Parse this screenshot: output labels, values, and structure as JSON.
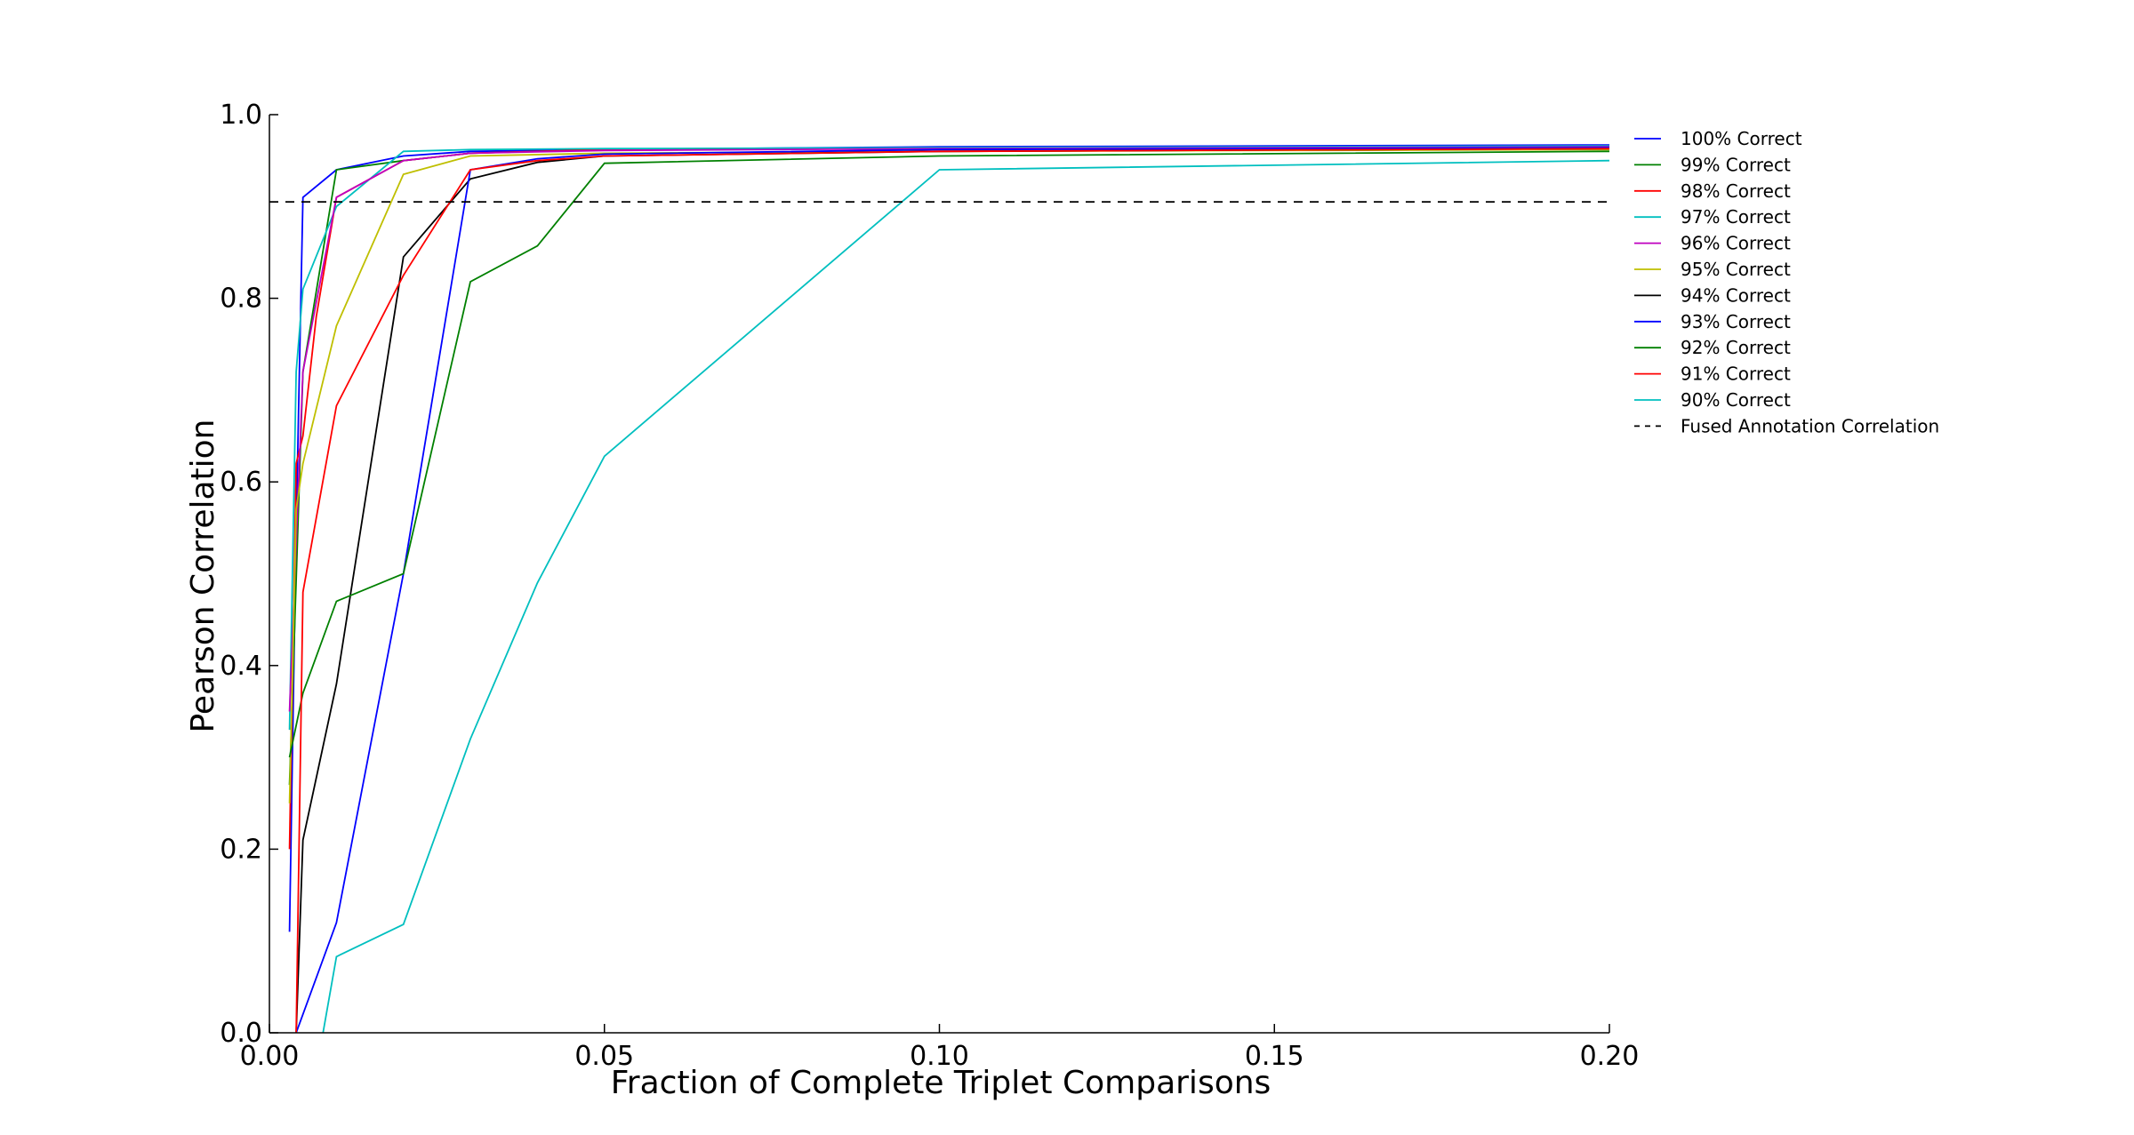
{
  "chart_data": {
    "type": "line",
    "title": "",
    "xlabel": "Fraction of Complete Triplet Comparisons",
    "ylabel": "Pearson Correlation",
    "xlim": [
      0.0,
      0.2
    ],
    "ylim": [
      0.0,
      1.0
    ],
    "x_ticks": [
      "0.00",
      "0.05",
      "0.10",
      "0.15",
      "0.20"
    ],
    "y_ticks": [
      "0.0",
      "0.2",
      "0.4",
      "0.6",
      "0.8",
      "1.0"
    ],
    "grid": false,
    "legend": "right, outside plot area",
    "series": [
      {
        "name": "100% Correct",
        "color": "#0000ff",
        "points": [
          [
            0.003,
            0.11
          ],
          [
            0.004,
            0.55
          ],
          [
            0.005,
            0.91
          ],
          [
            0.01,
            0.94
          ],
          [
            0.02,
            0.955
          ],
          [
            0.03,
            0.96
          ],
          [
            0.05,
            0.962
          ],
          [
            0.1,
            0.965
          ],
          [
            0.2,
            0.967
          ]
        ]
      },
      {
        "name": "99% Correct",
        "color": "#008000",
        "points": [
          [
            0.003,
            0.27
          ],
          [
            0.005,
            0.72
          ],
          [
            0.01,
            0.94
          ],
          [
            0.02,
            0.95
          ],
          [
            0.03,
            0.958
          ],
          [
            0.05,
            0.962
          ],
          [
            0.1,
            0.963
          ],
          [
            0.2,
            0.965
          ]
        ]
      },
      {
        "name": "98% Correct",
        "color": "#ff0000",
        "points": [
          [
            0.003,
            0.2
          ],
          [
            0.004,
            0.62
          ],
          [
            0.005,
            0.65
          ],
          [
            0.007,
            0.78
          ],
          [
            0.01,
            0.91
          ],
          [
            0.02,
            0.95
          ],
          [
            0.03,
            0.958
          ],
          [
            0.05,
            0.962
          ],
          [
            0.1,
            0.963
          ],
          [
            0.2,
            0.965
          ]
        ]
      },
      {
        "name": "97% Correct",
        "color": "#00bfbf",
        "points": [
          [
            0.003,
            0.33
          ],
          [
            0.004,
            0.72
          ],
          [
            0.005,
            0.81
          ],
          [
            0.01,
            0.9
          ],
          [
            0.02,
            0.96
          ],
          [
            0.03,
            0.962
          ],
          [
            0.05,
            0.963
          ],
          [
            0.1,
            0.964
          ],
          [
            0.2,
            0.966
          ]
        ]
      },
      {
        "name": "96% Correct",
        "color": "#bf00bf",
        "points": [
          [
            0.003,
            0.35
          ],
          [
            0.005,
            0.72
          ],
          [
            0.01,
            0.91
          ],
          [
            0.02,
            0.95
          ],
          [
            0.03,
            0.958
          ],
          [
            0.05,
            0.961
          ],
          [
            0.1,
            0.963
          ],
          [
            0.2,
            0.965
          ]
        ]
      },
      {
        "name": "95% Correct",
        "color": "#bfbf00",
        "points": [
          [
            0.003,
            0.25
          ],
          [
            0.004,
            0.57
          ],
          [
            0.005,
            0.62
          ],
          [
            0.01,
            0.77
          ],
          [
            0.02,
            0.935
          ],
          [
            0.03,
            0.955
          ],
          [
            0.05,
            0.958
          ],
          [
            0.1,
            0.96
          ],
          [
            0.2,
            0.962
          ]
        ]
      },
      {
        "name": "94% Correct",
        "color": "#000000",
        "points": [
          [
            0.004,
            0.0
          ],
          [
            0.005,
            0.21
          ],
          [
            0.01,
            0.38
          ],
          [
            0.02,
            0.845
          ],
          [
            0.03,
            0.93
          ],
          [
            0.04,
            0.948
          ],
          [
            0.05,
            0.955
          ],
          [
            0.1,
            0.96
          ],
          [
            0.2,
            0.963
          ]
        ]
      },
      {
        "name": "93% Correct",
        "color": "#0000ff",
        "points": [
          [
            0.004,
            0.0
          ],
          [
            0.01,
            0.12
          ],
          [
            0.02,
            0.5
          ],
          [
            0.03,
            0.94
          ],
          [
            0.04,
            0.952
          ],
          [
            0.05,
            0.957
          ],
          [
            0.1,
            0.962
          ],
          [
            0.2,
            0.964
          ]
        ]
      },
      {
        "name": "92% Correct",
        "color": "#008000",
        "points": [
          [
            0.003,
            0.3
          ],
          [
            0.005,
            0.37
          ],
          [
            0.01,
            0.47
          ],
          [
            0.02,
            0.5
          ],
          [
            0.03,
            0.818
          ],
          [
            0.04,
            0.857
          ],
          [
            0.05,
            0.947
          ],
          [
            0.1,
            0.955
          ],
          [
            0.2,
            0.96
          ]
        ]
      },
      {
        "name": "91% Correct",
        "color": "#ff0000",
        "points": [
          [
            0.004,
            0.0
          ],
          [
            0.005,
            0.48
          ],
          [
            0.01,
            0.683
          ],
          [
            0.02,
            0.825
          ],
          [
            0.03,
            0.94
          ],
          [
            0.04,
            0.95
          ],
          [
            0.05,
            0.955
          ],
          [
            0.1,
            0.96
          ],
          [
            0.2,
            0.963
          ]
        ]
      },
      {
        "name": "90% Correct",
        "color": "#00bfbf",
        "points": [
          [
            0.008,
            0.0
          ],
          [
            0.01,
            0.083
          ],
          [
            0.02,
            0.118
          ],
          [
            0.03,
            0.32
          ],
          [
            0.04,
            0.49
          ],
          [
            0.05,
            0.628
          ],
          [
            0.1,
            0.94
          ],
          [
            0.2,
            0.95
          ]
        ]
      }
    ],
    "reference_line": {
      "name": "Fused Annotation Correlation",
      "y": 0.905,
      "color": "#000000",
      "style": "dashed"
    }
  }
}
